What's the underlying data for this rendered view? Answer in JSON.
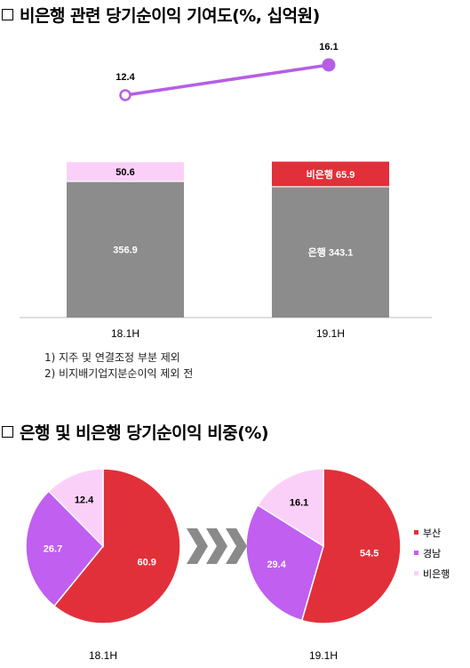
{
  "section1": {
    "title": "비은행 관련 당기순이익 기여도(%, 십억원)"
  },
  "section2": {
    "title": "은행 및 비은행 당기순이익 비중(%)"
  },
  "footnotes": [
    "1) 지주 및 연결조정 부분 제외",
    "2) 비지배기업지분순이익 제외 전"
  ],
  "colors": {
    "bank": "#8c8c8c",
    "nonbank_prev": "#fbd0f8",
    "nonbank_curr": "#e2303a",
    "line": "#b65fe3",
    "busan": "#e2303a",
    "gyeongnam": "#c05ff0",
    "nonbank_pie": "#fbd0f8",
    "arrow": "#8a8a8a"
  },
  "chart_data": [
    {
      "type": "bar",
      "stacked": true,
      "categories": [
        "18.1H",
        "19.1H"
      ],
      "series": [
        {
          "name": "은행",
          "values": [
            356.9,
            343.1
          ]
        },
        {
          "name": "비은행",
          "values": [
            50.6,
            65.9
          ]
        }
      ],
      "segment_labels": [
        [
          "356.9",
          "50.6"
        ],
        [
          "은행 343.1",
          "비은행 65.9"
        ]
      ],
      "line": {
        "values": [
          12.4,
          16.1
        ],
        "labels": [
          "12.4",
          "16.1"
        ]
      }
    },
    {
      "type": "pie",
      "title": "18.1H",
      "labels": [
        "부산",
        "경남",
        "비은행"
      ],
      "values": [
        60.9,
        26.7,
        12.4
      ]
    },
    {
      "type": "pie",
      "title": "19.1H",
      "labels": [
        "부산",
        "경남",
        "비은행"
      ],
      "values": [
        54.5,
        29.4,
        16.1
      ]
    }
  ],
  "legend": [
    "부산",
    "경남",
    "비은행"
  ]
}
